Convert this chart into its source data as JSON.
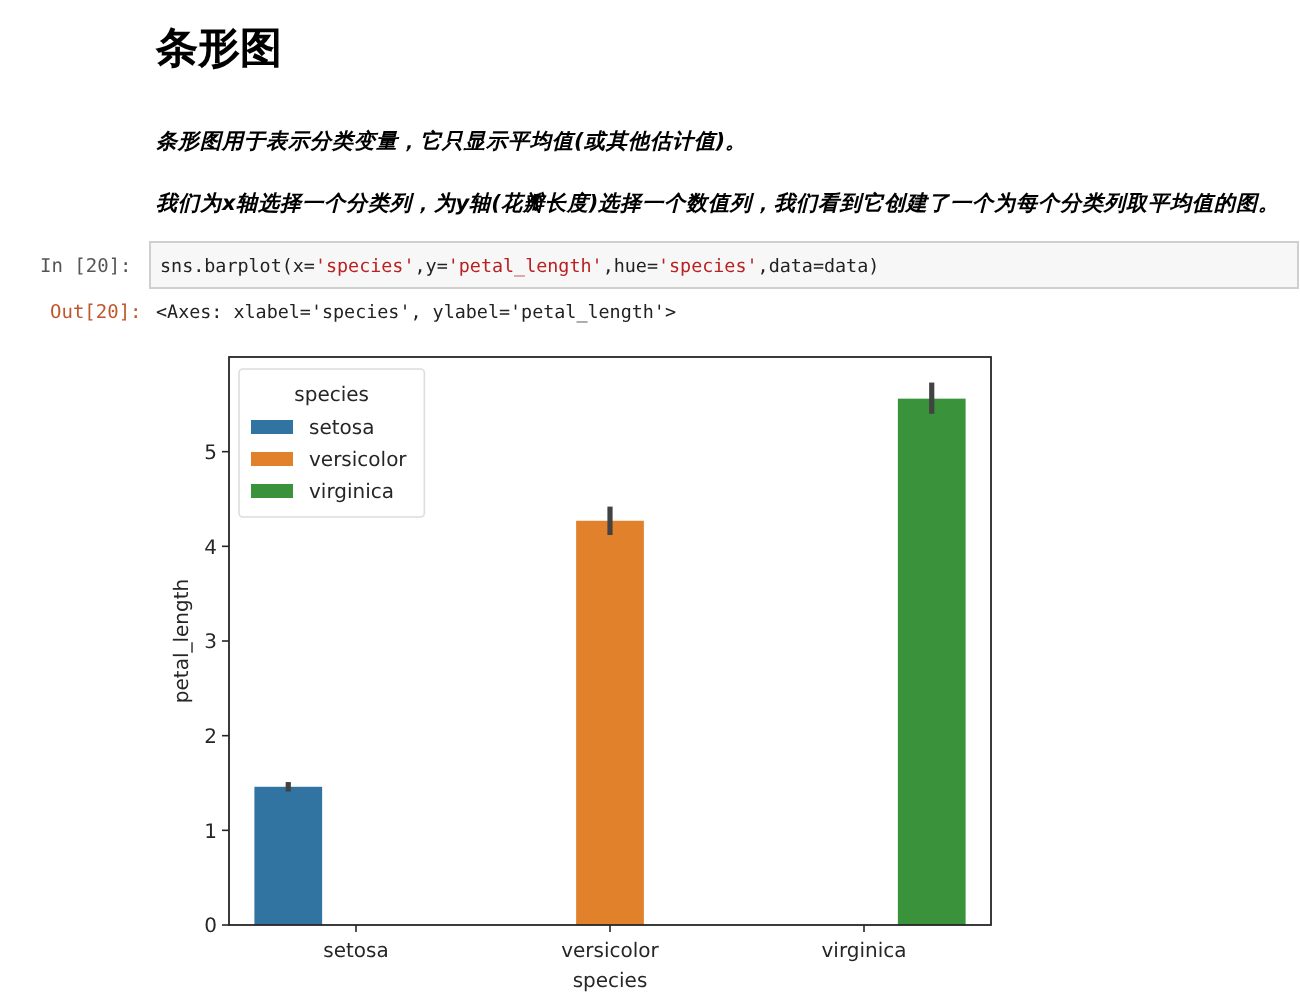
{
  "chart_data": {
    "type": "bar",
    "title": "条形图",
    "subtitle": "条形图用于表示分类变量，它只显示平均值(或其他估计值)。",
    "annotations": [
      "我们为x轴选择一个分类列，为y轴(花瓣长度)选择一个数值列，我们看到它创建了一个为每个分类列取平均值的图。",
      "In [20]:",
      "sns.barplot(x='species',y='petal_length',hue='species',data=data)",
      "Out[20]:",
      "<Axes: xlabel='species', ylabel='petal_length'>"
    ],
    "categories": [
      "setosa",
      "versicolor",
      "virginica"
    ],
    "xlabel": "species",
    "ylabel": "petal_length",
    "legend_title": "species",
    "legend": "top left",
    "series": [
      {
        "name": "setosa",
        "color": "#3274a1",
        "values": [
          1.46,
          null,
          null
        ],
        "errors": [
          [
            1.41,
            1.51
          ],
          null,
          null
        ]
      },
      {
        "name": "versicolor",
        "color": "#e1812c",
        "values": [
          null,
          4.27,
          null
        ],
        "errors": [
          null,
          [
            4.12,
            4.42
          ],
          null
        ]
      },
      {
        "name": "virginica",
        "color": "#3a923a",
        "values": [
          null,
          null,
          5.56
        ],
        "errors": [
          null,
          null,
          [
            5.4,
            5.73
          ]
        ]
      }
    ],
    "ylim": [
      0,
      6.0
    ],
    "yticks": [
      0,
      1,
      2,
      3,
      4,
      5
    ]
  }
}
